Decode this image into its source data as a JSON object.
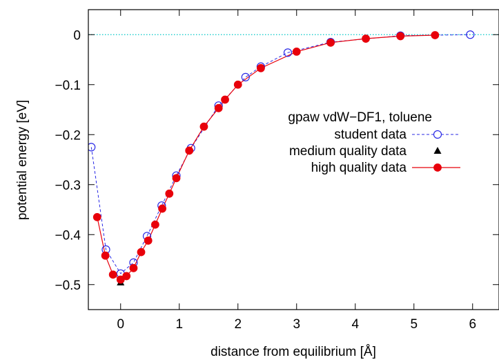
{
  "colors": {
    "student": "#2828e6",
    "medium": "#000000",
    "high": "#e8000b",
    "zero_line": "#00c8c8"
  },
  "chart_data": {
    "type": "scatter",
    "xlabel": "distance from equilibrium [Å]",
    "ylabel": "potential energy [eV]",
    "xlim": [
      -0.55,
      6.45
    ],
    "ylim": [
      -0.55,
      0.05
    ],
    "x_ticks": [
      0,
      1,
      2,
      3,
      4,
      5,
      6
    ],
    "y_ticks": [
      0,
      -0.1,
      -0.2,
      -0.3,
      -0.4,
      -0.5
    ],
    "x_tick_labels": [
      "0",
      "1",
      "2",
      "3",
      "4",
      "5",
      "6"
    ],
    "y_tick_labels": [
      "0",
      "−0.1",
      "−0.2",
      "−0.3",
      "−0.4",
      "−0.5"
    ],
    "grid": false,
    "legend_position": "right",
    "legend_title": "gpaw vdW−DF1, toluene",
    "reference_line": {
      "y": 0,
      "style": "dotted"
    },
    "series": [
      {
        "name": "student data",
        "style": "dashed line, open circles",
        "x": [
          -0.5,
          -0.25,
          0.0,
          0.22,
          0.45,
          0.7,
          0.95,
          1.2,
          1.67,
          2.13,
          2.39,
          2.85,
          3.58,
          4.77,
          5.96
        ],
        "y": [
          -0.225,
          -0.43,
          -0.478,
          -0.456,
          -0.403,
          -0.342,
          -0.282,
          -0.227,
          -0.142,
          -0.085,
          -0.064,
          -0.036,
          -0.015,
          -0.002,
          0.0
        ]
      },
      {
        "name": "medium quality data",
        "style": "filled triangles",
        "x": [
          0.0
        ],
        "y": [
          -0.496
        ]
      },
      {
        "name": "high quality data",
        "style": "solid line, filled circles",
        "x": [
          -0.4,
          -0.26,
          -0.13,
          0.0,
          0.1,
          0.22,
          0.35,
          0.47,
          0.59,
          0.71,
          0.83,
          0.95,
          1.17,
          1.42,
          1.67,
          1.78,
          2.0,
          2.39,
          3.0,
          3.58,
          4.18,
          4.77,
          5.36
        ],
        "y": [
          -0.365,
          -0.442,
          -0.48,
          -0.49,
          -0.483,
          -0.467,
          -0.435,
          -0.412,
          -0.38,
          -0.348,
          -0.318,
          -0.287,
          -0.232,
          -0.184,
          -0.147,
          -0.13,
          -0.1,
          -0.067,
          -0.034,
          -0.016,
          -0.008,
          -0.003,
          -0.001
        ]
      }
    ]
  }
}
